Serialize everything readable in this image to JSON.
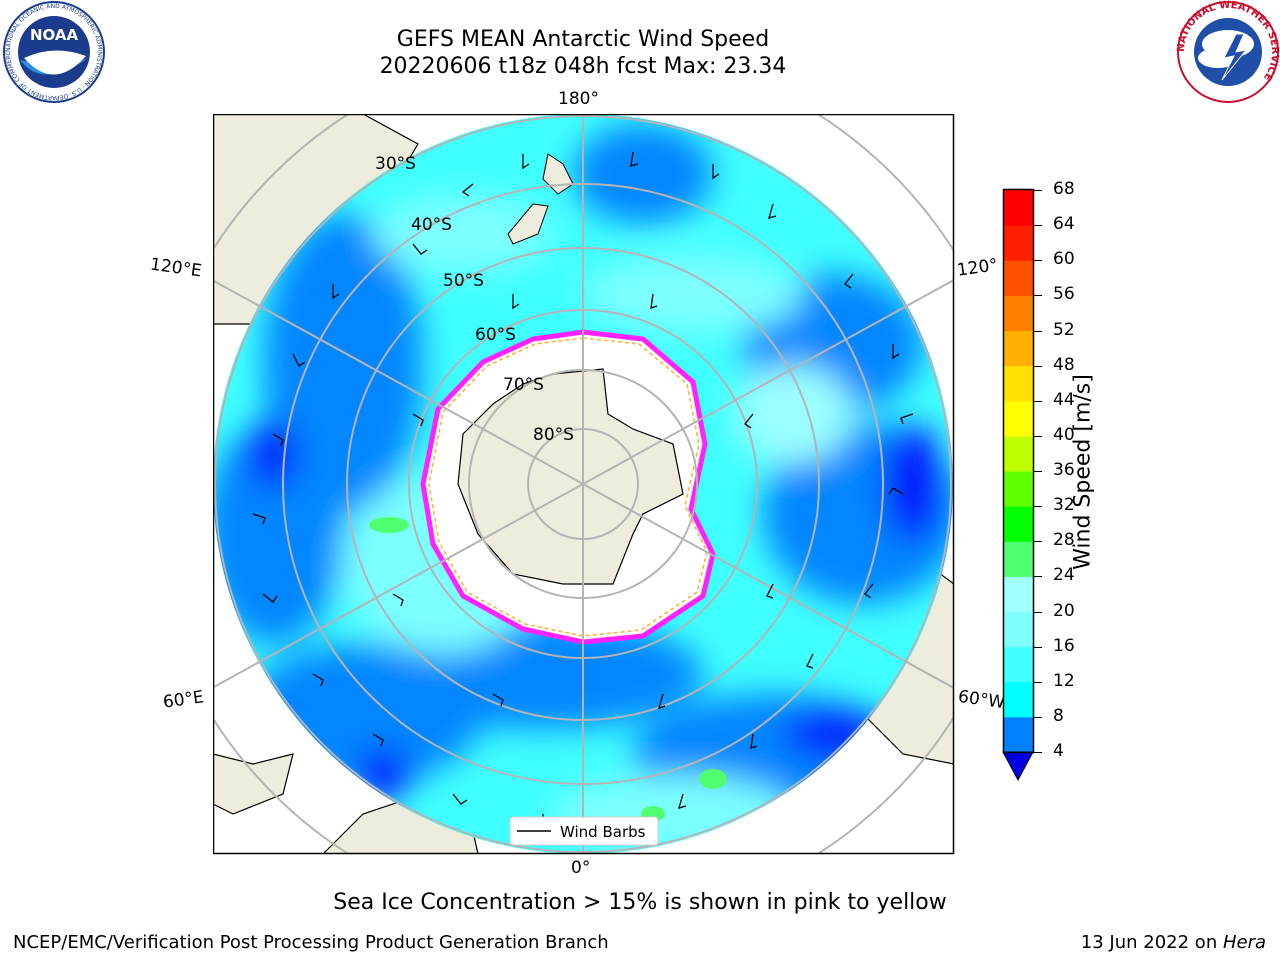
{
  "header": {
    "title_line1": "GEFS MEAN Antarctic Wind Speed",
    "title_line2": "20220606 t18z 048h fcst   Max: 23.34",
    "logo_left": "NOAA",
    "logo_left_ring": "NATIONAL OCEANIC AND ATMOSPHERIC ADMINISTRATION · U.S. DEPARTMENT OF COMMERCE",
    "logo_right_ring": "NATIONAL WEATHER SERVICE"
  },
  "map": {
    "lon_labels": {
      "top": "180°",
      "bottom": "0°",
      "left_upper": "120°E",
      "left_lower": "60°E",
      "right_upper": "120°",
      "right_lower": "60°W"
    },
    "lat_labels": [
      "30°S",
      "40°S",
      "50°S",
      "60°S",
      "70°S",
      "80°S"
    ],
    "legend_label": "Wind Barbs",
    "colors": {
      "land": "#EEEDDD",
      "ice": "#FFFFFF",
      "grid": "#B4B4B4",
      "ice_edge_pink": "#FF22FF",
      "ice_edge_orange": "#FFB030"
    }
  },
  "colorbar": {
    "label": "Wind Speed [m/s]",
    "ticks": [
      "4",
      "8",
      "12",
      "16",
      "20",
      "24",
      "28",
      "32",
      "36",
      "40",
      "44",
      "48",
      "52",
      "56",
      "60",
      "64",
      "68"
    ],
    "colors": [
      "#0000FF",
      "#0080FF",
      "#00FFFF",
      "#40FFFF",
      "#80FFFF",
      "#A0FFFF",
      "#50FF70",
      "#00FF00",
      "#60FF00",
      "#C0FF00",
      "#FFFF00",
      "#FFE000",
      "#FFB000",
      "#FF8000",
      "#FF5000",
      "#FF2000",
      "#FF0000"
    ],
    "extend_color": "#0000E0"
  },
  "footer": {
    "note": "Sea Ice Concentration > 15% is shown in pink to yellow",
    "left": "NCEP/EMC/Verification Post Processing Product Generation Branch",
    "date": "13 Jun 2022 on ",
    "machine": "Hera"
  }
}
